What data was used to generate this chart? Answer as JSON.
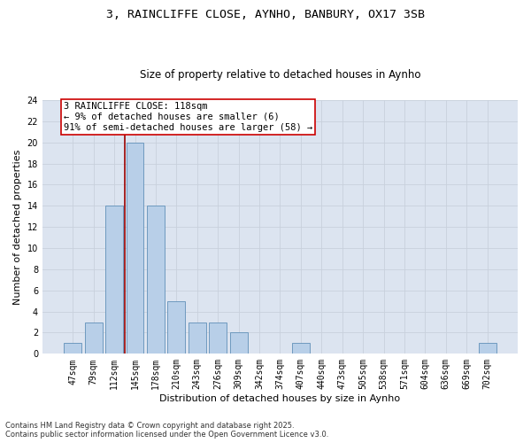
{
  "title1": "3, RAINCLIFFE CLOSE, AYNHO, BANBURY, OX17 3SB",
  "title2": "Size of property relative to detached houses in Aynho",
  "xlabel": "Distribution of detached houses by size in Aynho",
  "ylabel": "Number of detached properties",
  "categories": [
    "47sqm",
    "79sqm",
    "112sqm",
    "145sqm",
    "178sqm",
    "210sqm",
    "243sqm",
    "276sqm",
    "309sqm",
    "342sqm",
    "374sqm",
    "407sqm",
    "440sqm",
    "473sqm",
    "505sqm",
    "538sqm",
    "571sqm",
    "604sqm",
    "636sqm",
    "669sqm",
    "702sqm"
  ],
  "values": [
    1,
    3,
    14,
    20,
    14,
    5,
    3,
    3,
    2,
    0,
    0,
    1,
    0,
    0,
    0,
    0,
    0,
    0,
    0,
    0,
    1
  ],
  "bar_color": "#b8cfe8",
  "bar_edge_color": "#6090b8",
  "vline_x": 2.5,
  "vline_color": "#990000",
  "annotation_text": "3 RAINCLIFFE CLOSE: 118sqm\n← 9% of detached houses are smaller (6)\n91% of semi-detached houses are larger (58) →",
  "annotation_box_color": "#ffffff",
  "annotation_box_edge": "#cc0000",
  "ylim": [
    0,
    24
  ],
  "yticks": [
    0,
    2,
    4,
    6,
    8,
    10,
    12,
    14,
    16,
    18,
    20,
    22,
    24
  ],
  "grid_color": "#c8d0dc",
  "bg_color": "#dce4f0",
  "footnote": "Contains HM Land Registry data © Crown copyright and database right 2025.\nContains public sector information licensed under the Open Government Licence v3.0.",
  "title_fontsize": 9.5,
  "subtitle_fontsize": 8.5,
  "axis_label_fontsize": 8,
  "tick_fontsize": 7,
  "annot_fontsize": 7.5,
  "footnote_fontsize": 6
}
